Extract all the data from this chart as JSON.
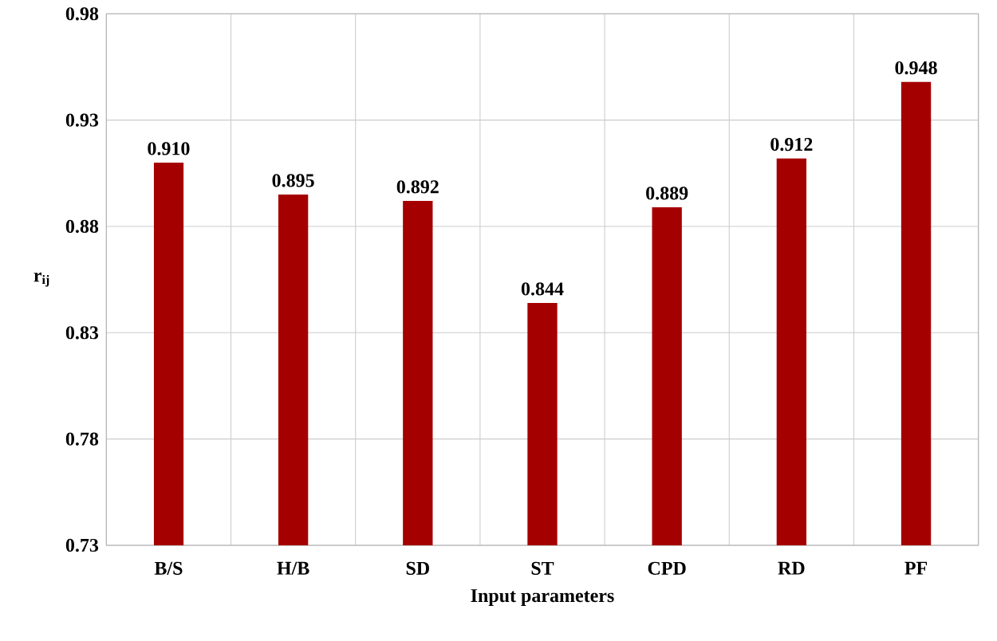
{
  "chart_data": {
    "type": "bar",
    "xlabel": "Input parameters",
    "ylabel": "r$_{ij}$",
    "categories": [
      "B/S",
      "H/B",
      "SD",
      "ST",
      "CPD",
      "RD",
      "PF"
    ],
    "values": [
      0.91,
      0.895,
      0.892,
      0.844,
      0.889,
      0.912,
      0.948
    ],
    "value_labels": [
      "0.910",
      "0.895",
      "0.892",
      "0.844",
      "0.889",
      "0.912",
      "0.948"
    ],
    "color": "#a50000",
    "ylim": [
      0.73,
      0.98
    ],
    "yticks": [
      {
        "value": 0.73,
        "label": "0.73"
      },
      {
        "value": 0.78,
        "label": "0.78"
      },
      {
        "value": 0.83,
        "label": "0.83"
      },
      {
        "value": 0.88,
        "label": "0.88"
      },
      {
        "value": 0.93,
        "label": "0.93"
      },
      {
        "value": 0.98,
        "label": "0.98"
      }
    ],
    "grid": true
  }
}
